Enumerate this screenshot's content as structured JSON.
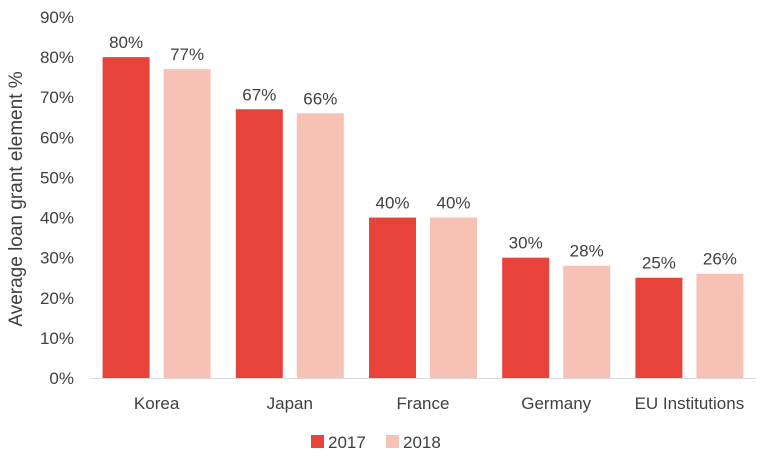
{
  "chart_data": {
    "type": "bar",
    "ylabel": "Average loan grant element %",
    "ylim": [
      0,
      90
    ],
    "yticks": [
      "0%",
      "10%",
      "20%",
      "30%",
      "40%",
      "50%",
      "60%",
      "70%",
      "80%",
      "90%"
    ],
    "categories": [
      "Korea",
      "Japan",
      "France",
      "Germany",
      "EU Institutions"
    ],
    "series": [
      {
        "name": "2017",
        "color": "#e8433a",
        "values": [
          80,
          67,
          40,
          30,
          25
        ],
        "labels": [
          "80%",
          "67%",
          "40%",
          "30%",
          "25%"
        ]
      },
      {
        "name": "2018",
        "color": "#f8c1b6",
        "values": [
          77,
          66,
          40,
          28,
          26
        ],
        "labels": [
          "77%",
          "66%",
          "40%",
          "28%",
          "26%"
        ]
      }
    ],
    "legend_position": "bottom",
    "grid": false
  }
}
